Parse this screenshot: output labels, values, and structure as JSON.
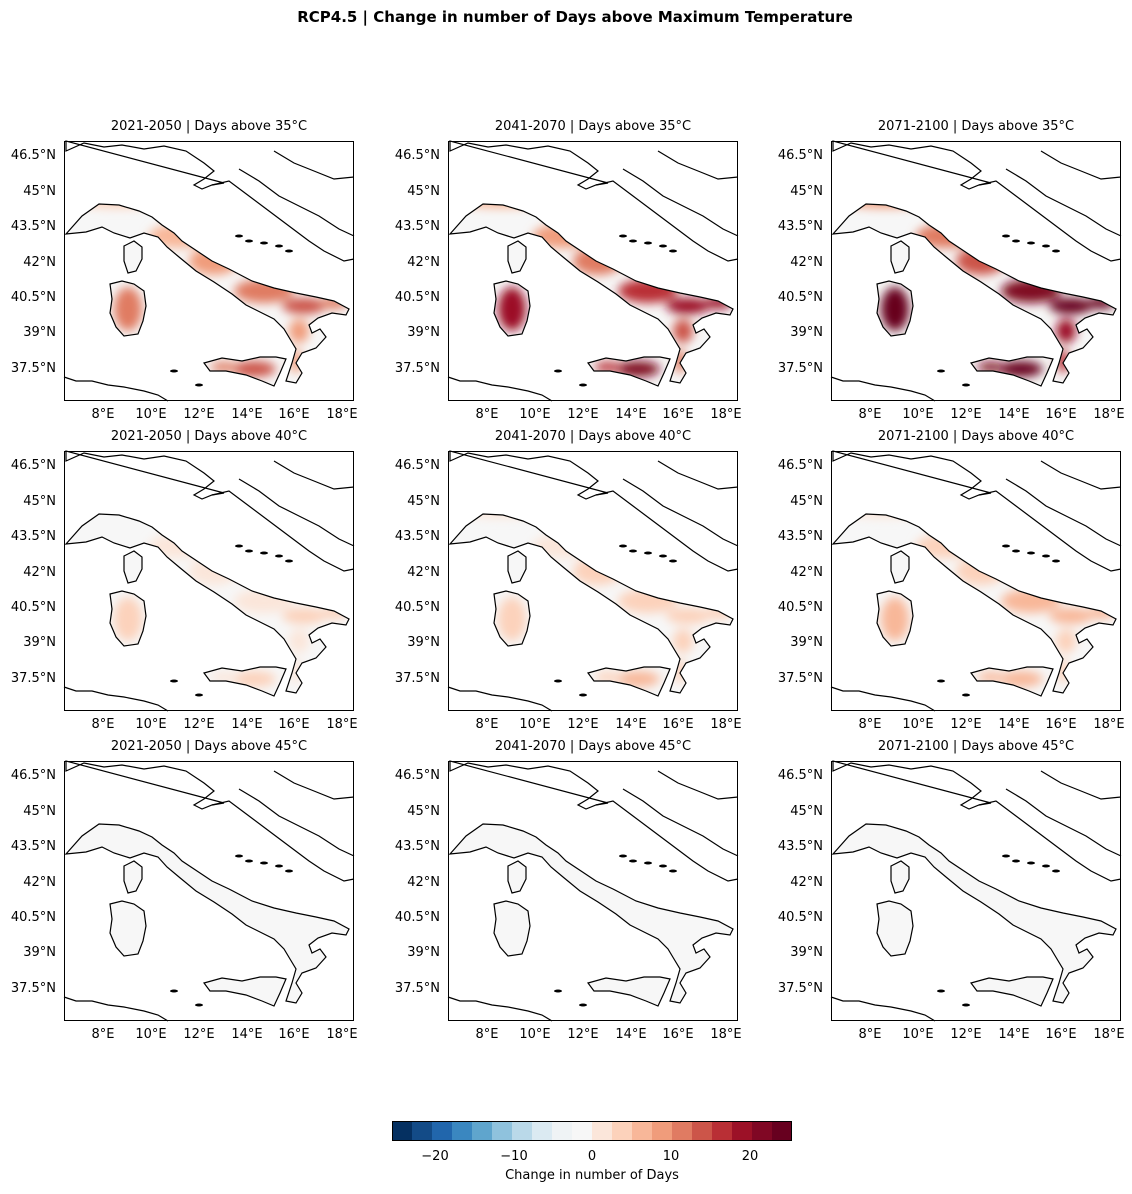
{
  "figure": {
    "title": "RCP4.5 | Change in number of Days above Maximum Temperature"
  },
  "axes": {
    "lat_ticks": [
      "46.5°N",
      "45°N",
      "43.5°N",
      "42°N",
      "40.5°N",
      "39°N",
      "37.5°N"
    ],
    "lon_ticks": [
      "8°E",
      "10°E",
      "12°E",
      "14°E",
      "16°E",
      "18°E"
    ]
  },
  "panels": [
    {
      "title": "2021-2050 | Days above 35°C",
      "intensity": 0.55
    },
    {
      "title": "2041-2070 | Days above 35°C",
      "intensity": 0.8
    },
    {
      "title": "2071-2100 | Days above 35°C",
      "intensity": 1.0
    },
    {
      "title": "2021-2050 | Days above 40°C",
      "intensity": 0.12
    },
    {
      "title": "2041-2070 | Days above 40°C",
      "intensity": 0.2
    },
    {
      "title": "2071-2100 | Days above 40°C",
      "intensity": 0.28
    },
    {
      "title": "2021-2050 | Days above 45°C",
      "intensity": 0.0
    },
    {
      "title": "2041-2070 | Days above 45°C",
      "intensity": 0.01
    },
    {
      "title": "2071-2100 | Days above 45°C",
      "intensity": 0.03
    }
  ],
  "colorbar": {
    "label": "Change in number of Days",
    "ticks": [
      "−20",
      "−10",
      "0",
      "10",
      "20"
    ],
    "colors": [
      "#053061",
      "#134b87",
      "#2166ac",
      "#3a87c0",
      "#5fa5cd",
      "#8fc2dd",
      "#bad9e9",
      "#dbeaf2",
      "#eff3f5",
      "#f7f7f7",
      "#fbe6da",
      "#fcd2bb",
      "#f8b799",
      "#f09c7b",
      "#e07b62",
      "#cc5549",
      "#b92f35",
      "#9c1127",
      "#800724",
      "#67001f"
    ],
    "vmin": -25,
    "vmax": 25
  }
}
